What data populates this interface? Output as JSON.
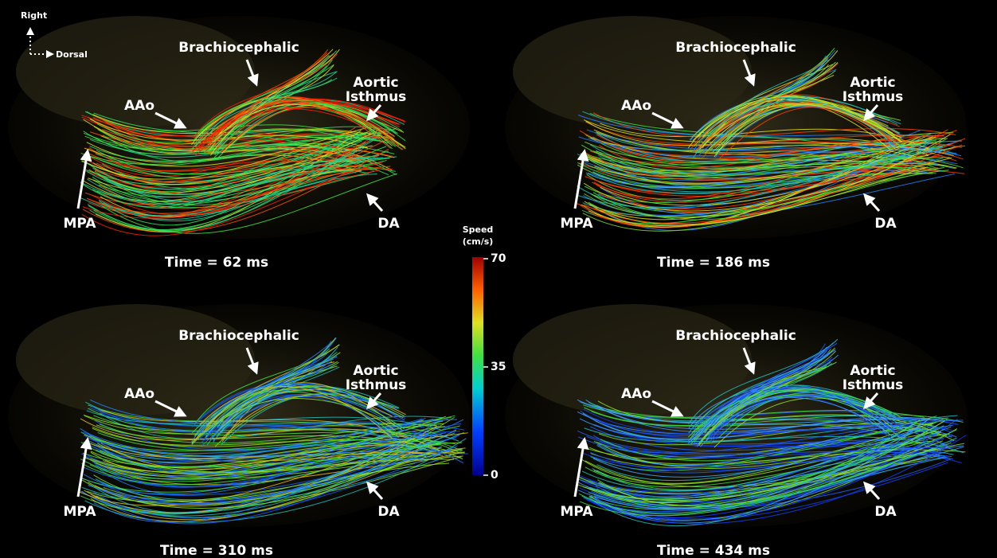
{
  "orientation": {
    "up": "Right",
    "side": "Dorsal"
  },
  "colorbar": {
    "title": [
      "Speed",
      "(cm/s)"
    ],
    "ticks": [
      0,
      35,
      70
    ]
  },
  "panels": [
    {
      "labels": {
        "brachiocephalic": "Brachiocephalic",
        "aao": "AAo",
        "isthmus": [
          "Aortic",
          "Isthmus"
        ],
        "mpa": "MPA",
        "da": "DA"
      },
      "time": "Time = 62 ms"
    },
    {
      "labels": {
        "brachiocephalic": "Brachiocephalic",
        "aao": "AAo",
        "isthmus": [
          "Aortic",
          "Isthmus"
        ],
        "mpa": "MPA",
        "da": "DA"
      },
      "time": "Time = 186 ms"
    },
    {
      "labels": {
        "brachiocephalic": "Brachiocephalic",
        "aao": "AAo",
        "isthmus": [
          "Aortic",
          "Isthmus"
        ],
        "mpa": "MPA",
        "da": "DA"
      },
      "time": "Time = 310 ms"
    },
    {
      "labels": {
        "brachiocephalic": "Brachiocephalic",
        "aao": "AAo",
        "isthmus": [
          "Aortic",
          "Isthmus"
        ],
        "mpa": "MPA",
        "da": "DA"
      },
      "time": "Time = 434 ms"
    }
  ]
}
